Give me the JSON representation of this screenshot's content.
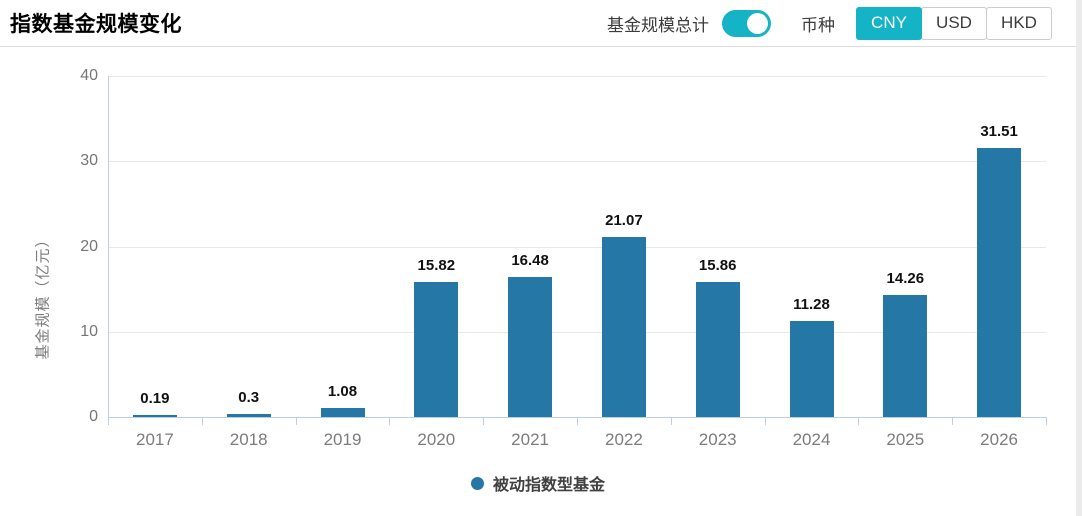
{
  "header": {
    "title": "指数基金规模变化",
    "toggle_label": "基金规模总计",
    "toggle_on": true,
    "currency_label": "币种",
    "currencies": [
      {
        "label": "CNY",
        "active": true
      },
      {
        "label": "USD",
        "active": false
      },
      {
        "label": "HKD",
        "active": false
      }
    ]
  },
  "colors": {
    "accent_teal": "#14b4c6",
    "bar_blue": "#2577a5",
    "axis_line": "#bcd0e5",
    "grid_line": "#e8e8e8",
    "tick_text": "#7c7c7c",
    "value_text": "#111111"
  },
  "chart_data": {
    "type": "bar",
    "title": "指数基金规模变化",
    "categories": [
      "2017",
      "2018",
      "2019",
      "2020",
      "2021",
      "2022",
      "2023",
      "2024",
      "2025",
      "2026"
    ],
    "values": [
      0.19,
      0.3,
      1.08,
      15.82,
      16.48,
      21.07,
      15.86,
      11.28,
      14.26,
      31.51
    ],
    "value_labels": [
      "0.19",
      "0.3",
      "1.08",
      "15.82",
      "16.48",
      "21.07",
      "15.86",
      "11.28",
      "14.26",
      "31.51"
    ],
    "series_name": "被动指数型基金",
    "xlabel": "",
    "ylabel": "基金规模（亿元）",
    "yticks": [
      0,
      10,
      20,
      30,
      40
    ],
    "ylim": [
      0,
      40
    ],
    "grid": true,
    "legend_position": "bottom"
  }
}
